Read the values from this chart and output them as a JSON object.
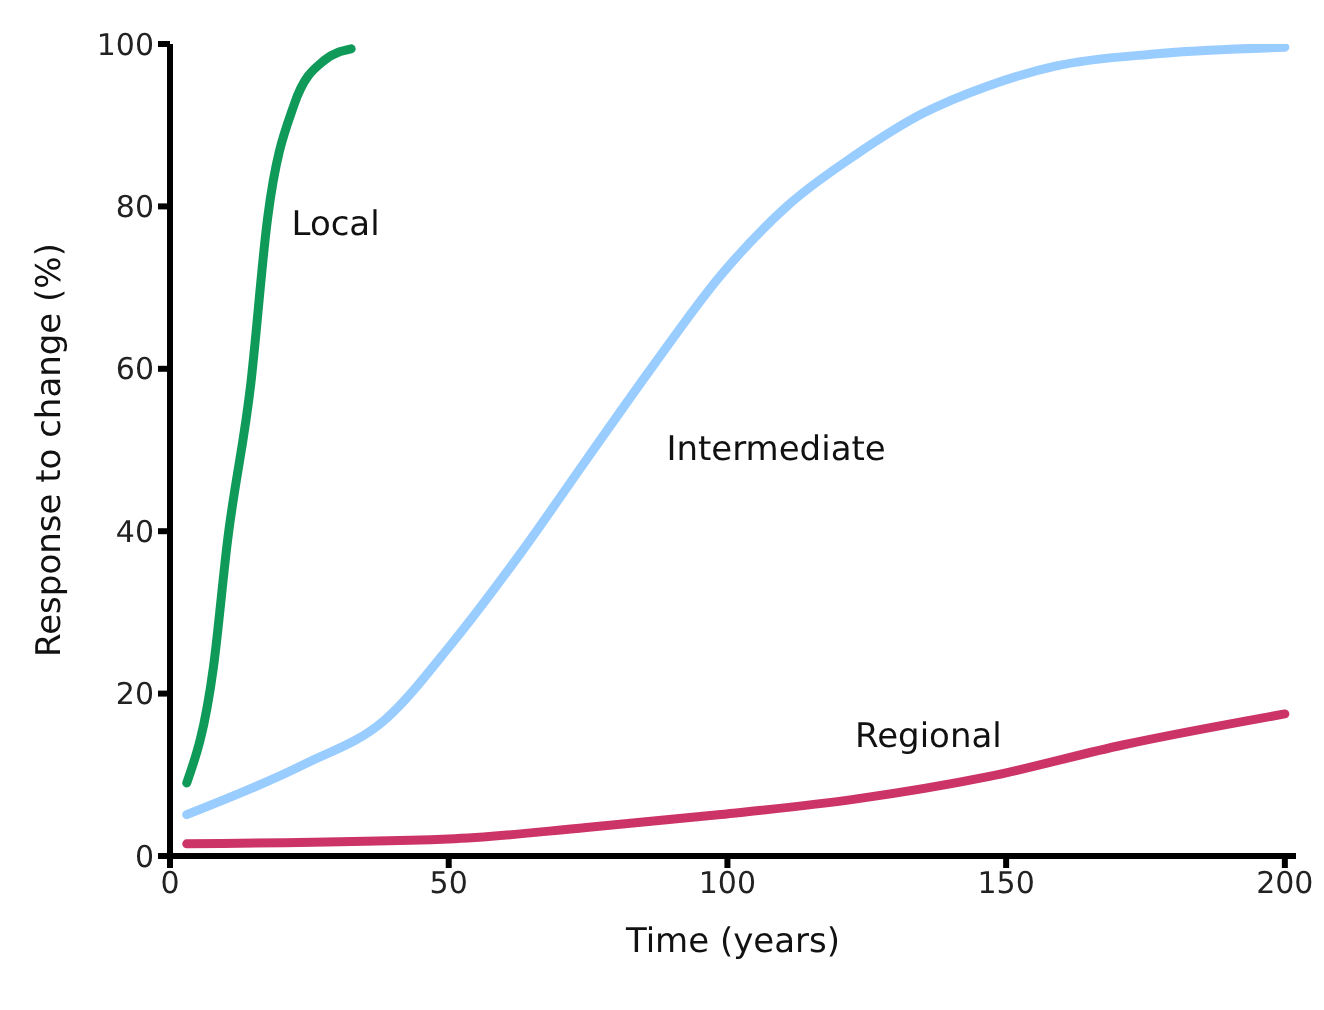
{
  "chart_data": {
    "type": "line",
    "xlabel": "Time (years)",
    "ylabel": "Response to change (%)",
    "xlim": [
      0,
      202
    ],
    "xticks": [
      0,
      50,
      100,
      150,
      200
    ],
    "ylim": [
      0,
      100
    ],
    "yticks": [
      0,
      20,
      40,
      60,
      80,
      100
    ],
    "grid": false,
    "legend": false,
    "marker": "none",
    "line_style": "solid",
    "series": [
      {
        "name": "Local",
        "color": "#109a5a",
        "x": [
          3,
          7.8,
          10.3,
          14.5,
          17.5,
          22.3,
          27.7,
          32.5
        ],
        "values": [
          9,
          23.3,
          38.7,
          58.2,
          78.5,
          92.6,
          98,
          99.4
        ]
      },
      {
        "name": "Intermediate",
        "color": "#99ccff",
        "x": [
          3,
          24.1,
          38.6,
          50.6,
          62.7,
          74.7,
          86.8,
          98.8,
          110.8,
          122.9,
          134.9,
          147,
          159,
          177.1,
          200
        ],
        "values": [
          5.1,
          11.3,
          16.8,
          26.2,
          37.1,
          48.8,
          60.5,
          71.5,
          80.1,
          86.3,
          91.4,
          94.9,
          97.3,
          98.8,
          99.6
        ]
      },
      {
        "name": "Regional",
        "color": "#cc3366",
        "x": [
          3,
          50,
          74.7,
          98.8,
          122.9,
          147,
          171.1,
          200
        ],
        "values": [
          1.5,
          2.1,
          3.5,
          5.1,
          7,
          9.8,
          13.7,
          17.5
        ]
      }
    ]
  }
}
